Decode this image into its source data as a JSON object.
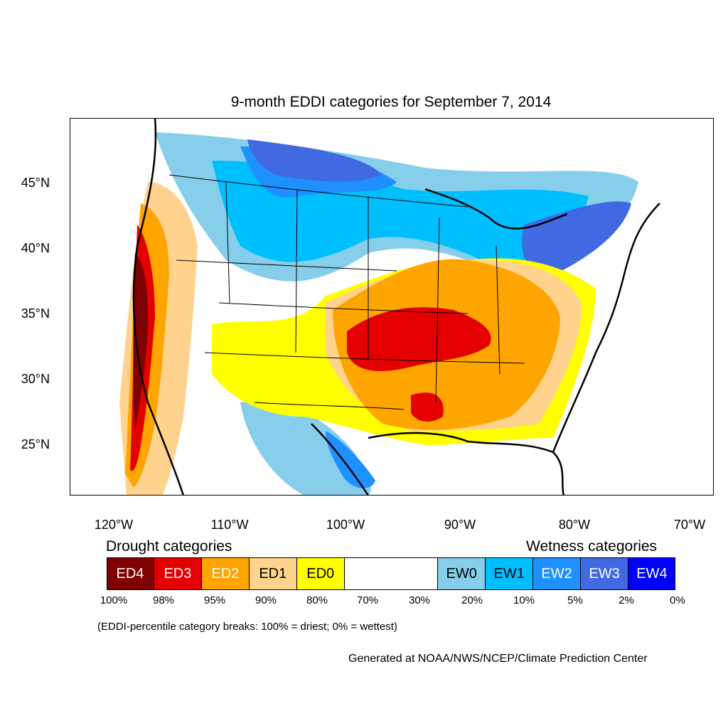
{
  "title": "9-month EDDI categories for September 7, 2014",
  "latitude_labels": [
    "45°N",
    "40°N",
    "35°N",
    "30°N",
    "25°N"
  ],
  "longitude_labels": [
    "120°W",
    "110°W",
    "100°W",
    "90°W",
    "80°W",
    "70°W"
  ],
  "legend": {
    "drought_heading": "Drought categories",
    "wetness_heading": "Wetness categories",
    "categories": [
      {
        "label": "ED4",
        "color": "#7f0000",
        "text_color": "#ffffff"
      },
      {
        "label": "ED3",
        "color": "#e50000",
        "text_color": "#ffffff"
      },
      {
        "label": "ED2",
        "color": "#ffa500",
        "text_color": "#ffffff"
      },
      {
        "label": "ED1",
        "color": "#ffd38e",
        "text_color": "#000000"
      },
      {
        "label": "ED0",
        "color": "#ffff00",
        "text_color": "#000000"
      },
      {
        "label": "",
        "color": "#ffffff",
        "text_color": "#000000"
      },
      {
        "label": "EW0",
        "color": "#87ceeb",
        "text_color": "#000000"
      },
      {
        "label": "EW1",
        "color": "#00bfff",
        "text_color": "#000000"
      },
      {
        "label": "EW2",
        "color": "#1e90ff",
        "text_color": "#ffffff"
      },
      {
        "label": "EW3",
        "color": "#4169e1",
        "text_color": "#ffffff"
      },
      {
        "label": "EW4",
        "color": "#0000ff",
        "text_color": "#ffffff"
      }
    ],
    "breaks": [
      "100%",
      "98%",
      "95%",
      "90%",
      "80%",
      "70%",
      "30%",
      "20%",
      "10%",
      "5%",
      "2%",
      "0%"
    ]
  },
  "note": "(EDDI-percentile category breaks: 100% = driest; 0% = wettest)",
  "credit": "Generated at NOAA/NWS/NCEP/Climate Prediction Center"
}
